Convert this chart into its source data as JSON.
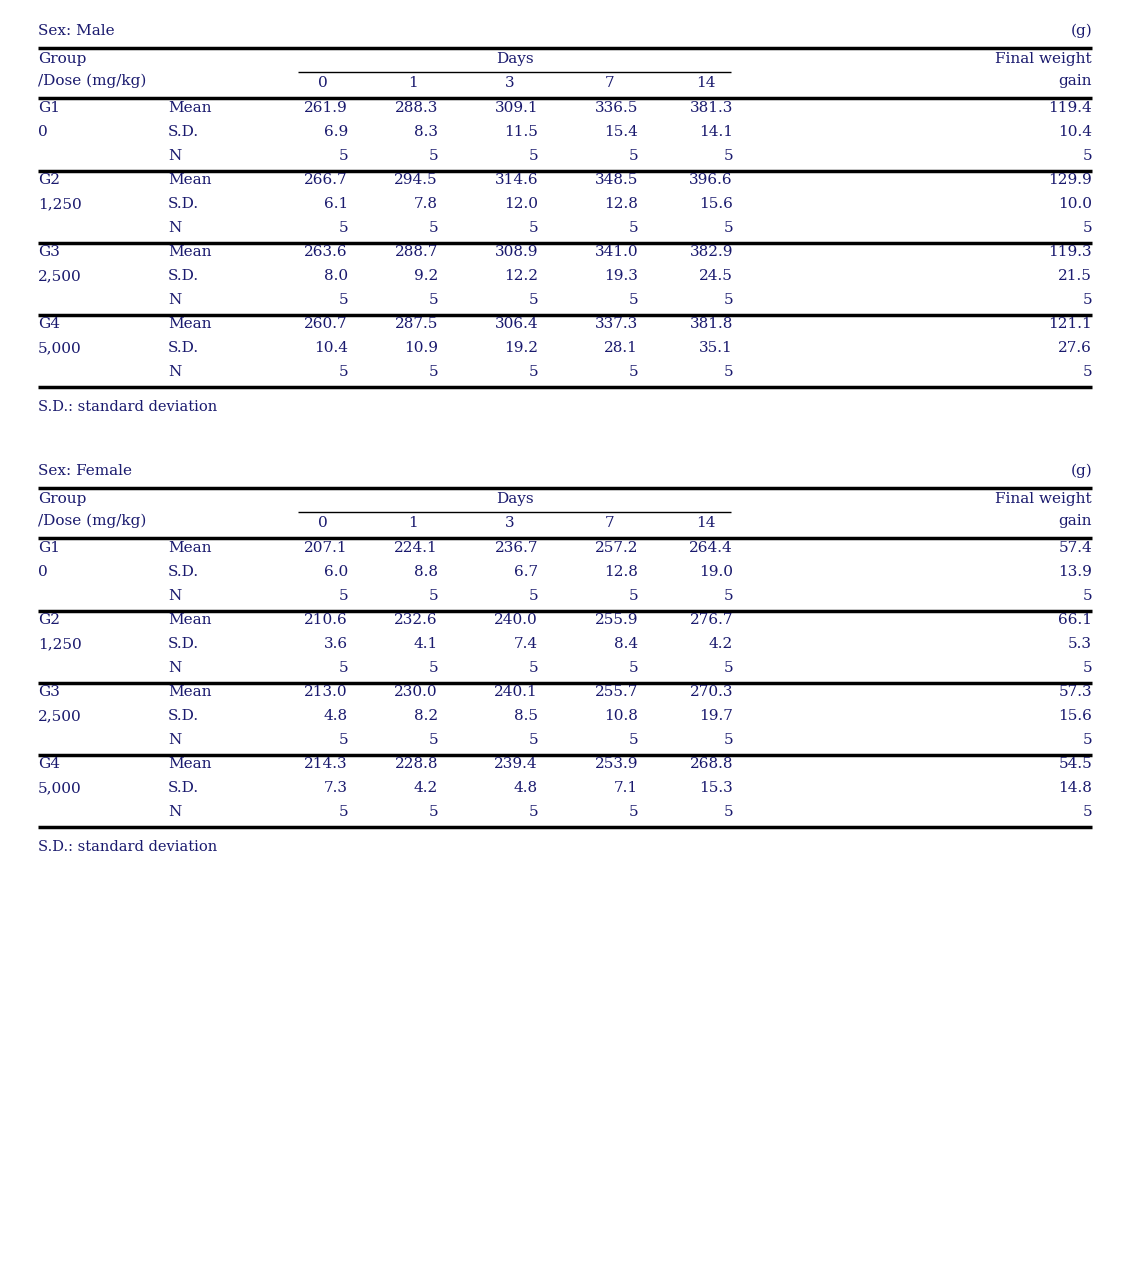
{
  "title_male": "Sex: Male",
  "title_female": "Sex: Female",
  "unit": "(g)",
  "footnote": "S.D.: standard deviation",
  "male": {
    "groups": [
      {
        "group": "G1",
        "dose": "0",
        "mean": [
          "261.9",
          "288.3",
          "309.1",
          "336.5",
          "381.3",
          "119.4"
        ],
        "sd": [
          "6.9",
          "8.3",
          "11.5",
          "15.4",
          "14.1",
          "10.4"
        ],
        "n": [
          "5",
          "5",
          "5",
          "5",
          "5",
          "5"
        ]
      },
      {
        "group": "G2",
        "dose": "1,250",
        "mean": [
          "266.7",
          "294.5",
          "314.6",
          "348.5",
          "396.6",
          "129.9"
        ],
        "sd": [
          "6.1",
          "7.8",
          "12.0",
          "12.8",
          "15.6",
          "10.0"
        ],
        "n": [
          "5",
          "5",
          "5",
          "5",
          "5",
          "5"
        ]
      },
      {
        "group": "G3",
        "dose": "2,500",
        "mean": [
          "263.6",
          "288.7",
          "308.9",
          "341.0",
          "382.9",
          "119.3"
        ],
        "sd": [
          "8.0",
          "9.2",
          "12.2",
          "19.3",
          "24.5",
          "21.5"
        ],
        "n": [
          "5",
          "5",
          "5",
          "5",
          "5",
          "5"
        ]
      },
      {
        "group": "G4",
        "dose": "5,000",
        "mean": [
          "260.7",
          "287.5",
          "306.4",
          "337.3",
          "381.8",
          "121.1"
        ],
        "sd": [
          "10.4",
          "10.9",
          "19.2",
          "28.1",
          "35.1",
          "27.6"
        ],
        "n": [
          "5",
          "5",
          "5",
          "5",
          "5",
          "5"
        ]
      }
    ]
  },
  "female": {
    "groups": [
      {
        "group": "G1",
        "dose": "0",
        "mean": [
          "207.1",
          "224.1",
          "236.7",
          "257.2",
          "264.4",
          "57.4"
        ],
        "sd": [
          "6.0",
          "8.8",
          "6.7",
          "12.8",
          "19.0",
          "13.9"
        ],
        "n": [
          "5",
          "5",
          "5",
          "5",
          "5",
          "5"
        ]
      },
      {
        "group": "G2",
        "dose": "1,250",
        "mean": [
          "210.6",
          "232.6",
          "240.0",
          "255.9",
          "276.7",
          "66.1"
        ],
        "sd": [
          "3.6",
          "4.1",
          "7.4",
          "8.4",
          "4.2",
          "5.3"
        ],
        "n": [
          "5",
          "5",
          "5",
          "5",
          "5",
          "5"
        ]
      },
      {
        "group": "G3",
        "dose": "2,500",
        "mean": [
          "213.0",
          "230.0",
          "240.1",
          "255.7",
          "270.3",
          "57.3"
        ],
        "sd": [
          "4.8",
          "8.2",
          "8.5",
          "10.8",
          "19.7",
          "15.6"
        ],
        "n": [
          "5",
          "5",
          "5",
          "5",
          "5",
          "5"
        ]
      },
      {
        "group": "G4",
        "dose": "5,000",
        "mean": [
          "214.3",
          "228.8",
          "239.4",
          "253.9",
          "268.8",
          "54.5"
        ],
        "sd": [
          "7.3",
          "4.2",
          "4.8",
          "7.1",
          "15.3",
          "14.8"
        ],
        "n": [
          "5",
          "5",
          "5",
          "5",
          "5",
          "5"
        ]
      }
    ]
  },
  "bg_color": "#ffffff",
  "text_color": "#1a1a6e",
  "font_size": 11,
  "font_family": "DejaVu Serif",
  "fig_width": 11.3,
  "fig_height": 12.71,
  "dpi": 100
}
